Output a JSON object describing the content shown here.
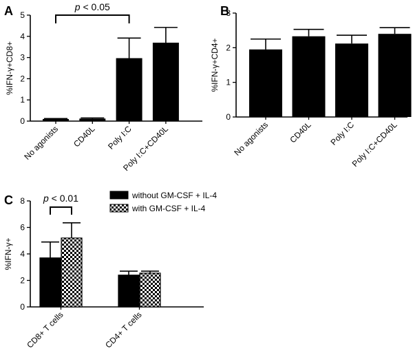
{
  "chart_data": [
    {
      "panel": "A",
      "type": "bar",
      "ylabel": "%IFN-γ+CD8+",
      "ylim": [
        0,
        5
      ],
      "yticks": [
        "0",
        "1",
        "2",
        "3",
        "4",
        "5"
      ],
      "categories": [
        "No agonists",
        "CD40L",
        "Poly I:C",
        "Poly I:C+CD40L"
      ],
      "values": [
        0.1,
        0.12,
        2.97,
        3.7
      ],
      "errors": [
        0.02,
        0.03,
        0.95,
        0.72
      ],
      "annotation": {
        "p": "p",
        "rest": " < 0.05",
        "from": 0,
        "to": 2
      }
    },
    {
      "panel": "B",
      "type": "bar",
      "ylabel": "%IFN-γ+CD4+",
      "ylim": [
        0,
        3
      ],
      "yticks": [
        "0",
        "1",
        "2",
        "3"
      ],
      "categories": [
        "No agonists",
        "CD40L",
        "Poly I:C",
        "Poly I:C+CD40L"
      ],
      "values": [
        1.95,
        2.33,
        2.12,
        2.4
      ],
      "errors": [
        0.3,
        0.2,
        0.24,
        0.18
      ]
    },
    {
      "panel": "C",
      "type": "bar",
      "ylabel": "%IFN-γ+",
      "ylim": [
        0,
        8
      ],
      "yticks": [
        "0",
        "2",
        "4",
        "6",
        "8"
      ],
      "categories": [
        "CD8+ T cells",
        "CD4+ T cells"
      ],
      "series": [
        {
          "name": "without GM-CSF + IL-4",
          "values": [
            3.7,
            2.4
          ],
          "errors": [
            1.2,
            0.3
          ],
          "fill": "solid"
        },
        {
          "name": "with GM-CSF + IL-4",
          "values": [
            5.2,
            2.55
          ],
          "errors": [
            1.15,
            0.15
          ],
          "fill": "checker"
        }
      ],
      "annotation": {
        "p": "p",
        "rest": " < 0.01",
        "group": 0
      }
    }
  ],
  "colors": {
    "bar": "#000000",
    "checker_light": "#ffffff"
  }
}
